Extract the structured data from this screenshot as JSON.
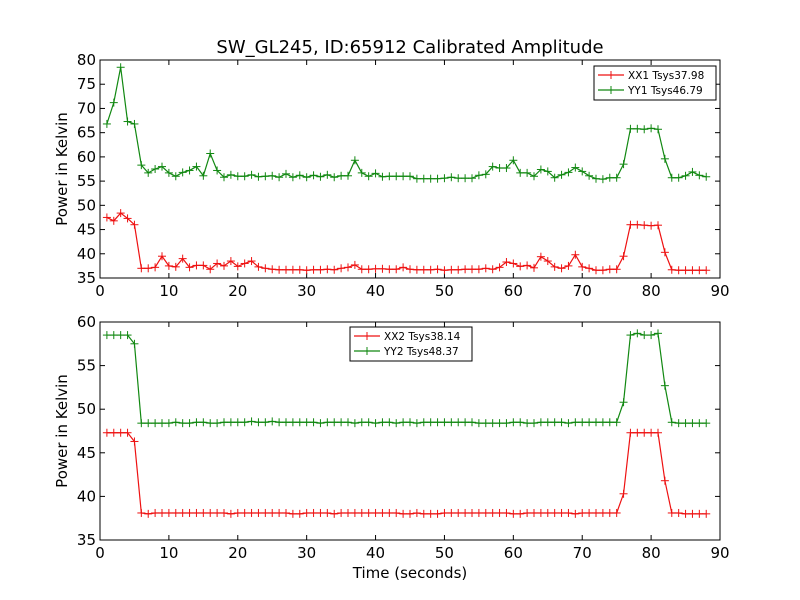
{
  "figure": {
    "title": "SW_GL245, ID:65912 Calibrated Amplitude",
    "xlabel": "Time (seconds)"
  },
  "colors": {
    "red": "#ee1111",
    "green": "#118811"
  },
  "chart_data": [
    {
      "type": "line",
      "ylabel": "Power in Kelvin",
      "xlim": [
        0,
        90
      ],
      "ylim": [
        35,
        80
      ],
      "xticks": [
        "0",
        "10",
        "20",
        "30",
        "40",
        "50",
        "60",
        "70",
        "80",
        "90"
      ],
      "yticks": [
        "35",
        "40",
        "45",
        "50",
        "55",
        "60",
        "65",
        "70",
        "75",
        "80"
      ],
      "legend_position": "top-right",
      "x": [
        1,
        2,
        3,
        4,
        5,
        6,
        7,
        8,
        9,
        10,
        11,
        12,
        13,
        14,
        15,
        16,
        17,
        18,
        19,
        20,
        21,
        22,
        23,
        24,
        25,
        26,
        27,
        28,
        29,
        30,
        31,
        32,
        33,
        34,
        35,
        36,
        37,
        38,
        39,
        40,
        41,
        42,
        43,
        44,
        45,
        46,
        47,
        48,
        49,
        50,
        51,
        52,
        53,
        54,
        55,
        56,
        57,
        58,
        59,
        60,
        61,
        62,
        63,
        64,
        65,
        66,
        67,
        68,
        69,
        70,
        71,
        72,
        73,
        74,
        75,
        76,
        77,
        78,
        79,
        80,
        81,
        82,
        83,
        84,
        85,
        86,
        87,
        88
      ],
      "series": [
        {
          "name": "XX1 Tsys37.98",
          "color": "red",
          "values": [
            47.5,
            46.8,
            48.4,
            47.3,
            46,
            37,
            37,
            37.2,
            39.5,
            37.5,
            37.3,
            39,
            37.2,
            37.6,
            37.6,
            36.8,
            38,
            37.5,
            38.5,
            37.4,
            38,
            38.5,
            37.3,
            37,
            36.8,
            36.7,
            36.7,
            36.7,
            36.7,
            36.6,
            36.7,
            36.7,
            36.8,
            36.7,
            37,
            37.2,
            37.7,
            36.8,
            36.8,
            36.9,
            36.9,
            36.8,
            36.8,
            37.2,
            36.8,
            36.7,
            36.7,
            36.7,
            36.8,
            36.6,
            36.7,
            36.7,
            36.8,
            36.8,
            36.8,
            37,
            36.8,
            37.2,
            38.3,
            38,
            37.4,
            37.6,
            37.1,
            39.4,
            38.5,
            37.3,
            37,
            37.5,
            39.8,
            37.3,
            37,
            36.6,
            36.6,
            36.8,
            36.8,
            39.5,
            46,
            46,
            45.9,
            45.8,
            45.9,
            40.3,
            36.7,
            36.6,
            36.6,
            36.6,
            36.6,
            36.6
          ]
        },
        {
          "name": "YY1 Tsys46.79",
          "color": "green",
          "values": [
            66.8,
            71.2,
            78.5,
            67.3,
            66.8,
            58.3,
            56.7,
            57.5,
            58,
            56.7,
            56,
            56.8,
            57.2,
            58,
            56.1,
            60.7,
            57.2,
            55.8,
            56.3,
            56,
            56,
            56.3,
            55.9,
            56,
            56.1,
            55.8,
            56.5,
            55.8,
            56.2,
            55.8,
            56.2,
            55.9,
            56.3,
            55.8,
            56.1,
            56.1,
            59.3,
            56.7,
            56,
            56.6,
            55.9,
            56,
            56,
            56,
            56,
            55.5,
            55.5,
            55.5,
            55.5,
            55.6,
            55.8,
            55.6,
            55.6,
            55.6,
            56.2,
            56.4,
            58,
            57.7,
            57.7,
            59.3,
            56.7,
            56.7,
            56,
            57.4,
            57,
            55.7,
            56.3,
            56.8,
            57.8,
            57,
            56.1,
            55.5,
            55.4,
            55.7,
            55.7,
            58.5,
            65.8,
            65.8,
            65.7,
            65.9,
            65.7,
            59.6,
            55.7,
            55.7,
            56.1,
            56.9,
            56.2,
            55.9
          ]
        }
      ]
    },
    {
      "type": "line",
      "ylabel": "Power in Kelvin",
      "xlim": [
        0,
        90
      ],
      "ylim": [
        35,
        60
      ],
      "xticks": [
        "0",
        "10",
        "20",
        "30",
        "40",
        "50",
        "60",
        "70",
        "80",
        "90"
      ],
      "yticks": [
        "35",
        "40",
        "45",
        "50",
        "55",
        "60"
      ],
      "legend_position": "top-center",
      "x": [
        1,
        2,
        3,
        4,
        5,
        6,
        7,
        8,
        9,
        10,
        11,
        12,
        13,
        14,
        15,
        16,
        17,
        18,
        19,
        20,
        21,
        22,
        23,
        24,
        25,
        26,
        27,
        28,
        29,
        30,
        31,
        32,
        33,
        34,
        35,
        36,
        37,
        38,
        39,
        40,
        41,
        42,
        43,
        44,
        45,
        46,
        47,
        48,
        49,
        50,
        51,
        52,
        53,
        54,
        55,
        56,
        57,
        58,
        59,
        60,
        61,
        62,
        63,
        64,
        65,
        66,
        67,
        68,
        69,
        70,
        71,
        72,
        73,
        74,
        75,
        76,
        77,
        78,
        79,
        80,
        81,
        82,
        83,
        84,
        85,
        86,
        87,
        88
      ],
      "series": [
        {
          "name": "XX2 Tsys38.14",
          "color": "red",
          "values": [
            47.3,
            47.3,
            47.3,
            47.3,
            46.3,
            38.1,
            38,
            38.1,
            38.1,
            38.1,
            38.1,
            38.1,
            38.1,
            38.1,
            38.1,
            38.1,
            38.1,
            38.1,
            38,
            38.1,
            38.1,
            38.1,
            38.1,
            38.1,
            38.1,
            38.1,
            38.1,
            38,
            38,
            38.1,
            38.1,
            38.1,
            38.1,
            38,
            38.1,
            38.1,
            38.1,
            38.1,
            38.1,
            38.1,
            38.1,
            38.1,
            38.1,
            38,
            38,
            38.1,
            38,
            38,
            38,
            38.1,
            38.1,
            38.1,
            38.1,
            38.1,
            38.1,
            38.1,
            38.1,
            38.1,
            38.1,
            38,
            38,
            38.1,
            38.1,
            38.1,
            38.1,
            38.1,
            38.1,
            38.1,
            38,
            38.1,
            38.1,
            38.1,
            38.1,
            38.1,
            38.1,
            40.3,
            47.3,
            47.3,
            47.3,
            47.3,
            47.3,
            41.8,
            38.1,
            38.1,
            38,
            38,
            38,
            38
          ]
        },
        {
          "name": "YY2 Tsys48.37",
          "color": "green",
          "values": [
            58.5,
            58.5,
            58.5,
            58.5,
            57.5,
            48.4,
            48.4,
            48.4,
            48.4,
            48.4,
            48.5,
            48.4,
            48.4,
            48.5,
            48.5,
            48.4,
            48.4,
            48.5,
            48.5,
            48.5,
            48.5,
            48.6,
            48.5,
            48.5,
            48.6,
            48.5,
            48.5,
            48.5,
            48.5,
            48.5,
            48.5,
            48.4,
            48.5,
            48.5,
            48.5,
            48.5,
            48.4,
            48.5,
            48.5,
            48.4,
            48.5,
            48.5,
            48.4,
            48.5,
            48.5,
            48.4,
            48.5,
            48.5,
            48.5,
            48.5,
            48.5,
            48.5,
            48.5,
            48.5,
            48.4,
            48.4,
            48.4,
            48.4,
            48.4,
            48.5,
            48.5,
            48.4,
            48.4,
            48.5,
            48.5,
            48.5,
            48.5,
            48.4,
            48.5,
            48.5,
            48.5,
            48.5,
            48.5,
            48.5,
            48.5,
            50.8,
            58.5,
            58.7,
            58.5,
            58.5,
            58.7,
            52.7,
            48.5,
            48.4,
            48.4,
            48.4,
            48.4,
            48.4
          ]
        }
      ]
    }
  ]
}
